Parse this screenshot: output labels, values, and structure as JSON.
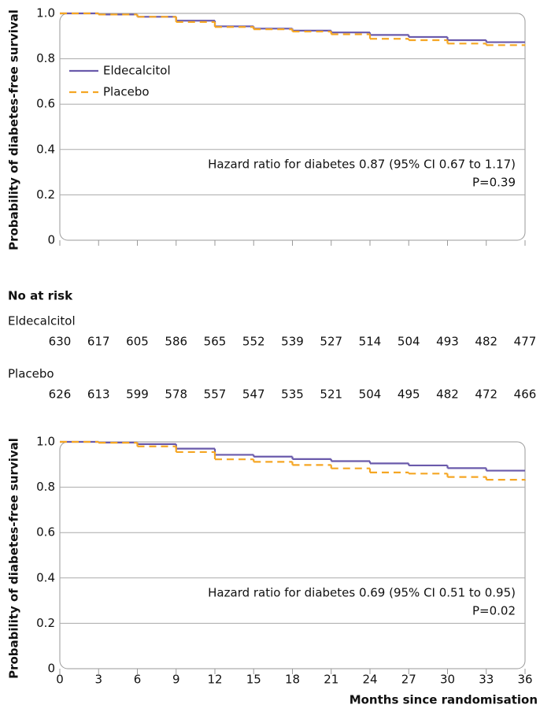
{
  "chart_data": [
    {
      "type": "step",
      "ylabel": "Probability of diabetes-free survival",
      "x": [
        0,
        3,
        6,
        9,
        12,
        15,
        18,
        21,
        24,
        27,
        30,
        33,
        36
      ],
      "series": [
        {
          "name": "Eldecalcitol",
          "color": "#6a5aab",
          "linestyle": "solid",
          "values": [
            1.0,
            0.995,
            0.985,
            0.968,
            0.943,
            0.933,
            0.924,
            0.916,
            0.905,
            0.896,
            0.882,
            0.873,
            0.873
          ]
        },
        {
          "name": "Placebo",
          "color": "#f5a623",
          "linestyle": "dashed",
          "values": [
            1.0,
            0.995,
            0.985,
            0.962,
            0.94,
            0.93,
            0.92,
            0.908,
            0.888,
            0.882,
            0.867,
            0.86,
            0.86
          ]
        }
      ],
      "xlim": [
        0,
        36
      ],
      "xticks": [
        0,
        3,
        6,
        9,
        12,
        15,
        18,
        21,
        24,
        27,
        30,
        33,
        36
      ],
      "show_xtick_labels": false,
      "ylim": [
        0,
        1
      ],
      "yticks": [
        0,
        0.2,
        0.4,
        0.6,
        0.8,
        {
          "value": 1,
          "label": "1.0"
        }
      ],
      "grid": true,
      "legend": "upper left",
      "annotations": [
        "Hazard ratio for diabetes 0.87 (95% CI 0.67 to 1.17)",
        "P=0.39"
      ]
    },
    {
      "type": "step",
      "ylabel": "Probability of diabetes-free survival",
      "xlabel": "Months since randomisation",
      "x": [
        0,
        3,
        6,
        9,
        12,
        15,
        18,
        21,
        24,
        27,
        30,
        33,
        36
      ],
      "series": [
        {
          "color": "#6a5aab",
          "linestyle": "solid",
          "values": [
            1.0,
            0.997,
            0.99,
            0.97,
            0.943,
            0.935,
            0.924,
            0.915,
            0.905,
            0.896,
            0.884,
            0.873,
            0.873
          ]
        },
        {
          "color": "#f5a623",
          "linestyle": "dashed",
          "values": [
            1.0,
            0.996,
            0.98,
            0.955,
            0.923,
            0.912,
            0.898,
            0.883,
            0.865,
            0.86,
            0.845,
            0.833,
            0.83
          ]
        }
      ],
      "xlim": [
        0,
        36
      ],
      "xticks": [
        0,
        3,
        6,
        9,
        12,
        15,
        18,
        21,
        24,
        27,
        30,
        33,
        36
      ],
      "show_xtick_labels": true,
      "ylim": [
        0,
        1
      ],
      "yticks": [
        0,
        0.2,
        0.4,
        0.6,
        0.8,
        {
          "value": 1,
          "label": "1.0"
        }
      ],
      "grid": true,
      "annotations": [
        "Hazard ratio for diabetes 0.69 (95% CI 0.51 to 0.95)",
        "P=0.02"
      ]
    }
  ],
  "risk_table": {
    "title": "No at risk",
    "rows": [
      {
        "name": "Eldecalcitol",
        "values": [
          630,
          617,
          605,
          586,
          565,
          552,
          539,
          527,
          514,
          504,
          493,
          482,
          477
        ]
      },
      {
        "name": "Placebo",
        "values": [
          626,
          613,
          599,
          578,
          557,
          547,
          535,
          521,
          504,
          495,
          482,
          472,
          466
        ]
      }
    ]
  }
}
